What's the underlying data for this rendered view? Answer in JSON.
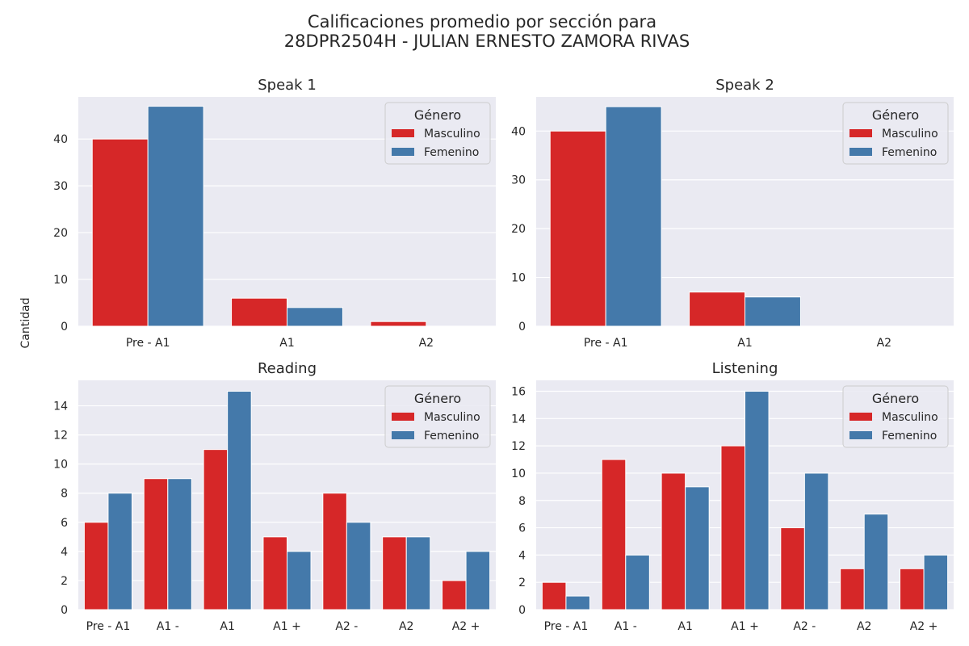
{
  "figure": {
    "title_line1": "Calificaciones promedio por sección para",
    "title_line2": "28DPR2504H - JULIAN ERNESTO ZAMORA RIVAS",
    "ylabel": "Cantidad"
  },
  "legend": {
    "title": "Género",
    "entries": [
      "Masculino",
      "Femenino"
    ]
  },
  "colors": {
    "Masculino": "#d62728",
    "Femenino": "#4479aa",
    "plot_bg": "#eaeaf2",
    "grid": "#ffffff"
  },
  "chart_data": [
    {
      "type": "bar",
      "title": "Speak 1",
      "categories": [
        "Pre - A1",
        "A1",
        "A2"
      ],
      "series": [
        {
          "name": "Masculino",
          "values": [
            40,
            6,
            1
          ]
        },
        {
          "name": "Femenino",
          "values": [
            47,
            4,
            0
          ]
        }
      ],
      "ylim": [
        0,
        49
      ],
      "yticks": [
        0,
        10,
        20,
        30,
        40
      ],
      "grid": true,
      "legend_position": "top-right"
    },
    {
      "type": "bar",
      "title": "Speak 2",
      "categories": [
        "Pre - A1",
        "A1",
        "A2"
      ],
      "series": [
        {
          "name": "Masculino",
          "values": [
            40,
            7,
            0
          ]
        },
        {
          "name": "Femenino",
          "values": [
            45,
            6,
            0
          ]
        }
      ],
      "ylim": [
        0,
        47
      ],
      "yticks": [
        0,
        10,
        20,
        30,
        40
      ],
      "grid": true,
      "legend_position": "top-right"
    },
    {
      "type": "bar",
      "title": "Reading",
      "categories": [
        "Pre - A1",
        "A1 -",
        "A1",
        "A1 +",
        "A2 -",
        "A2",
        "A2 +"
      ],
      "series": [
        {
          "name": "Masculino",
          "values": [
            6,
            9,
            11,
            5,
            8,
            5,
            2
          ]
        },
        {
          "name": "Femenino",
          "values": [
            8,
            9,
            15,
            4,
            6,
            5,
            4
          ]
        }
      ],
      "ylim": [
        0,
        15.75
      ],
      "yticks": [
        0,
        2,
        4,
        6,
        8,
        10,
        12,
        14
      ],
      "grid": true,
      "legend_position": "top-right"
    },
    {
      "type": "bar",
      "title": "Listening",
      "categories": [
        "Pre - A1",
        "A1 -",
        "A1",
        "A1 +",
        "A2 -",
        "A2",
        "A2 +"
      ],
      "series": [
        {
          "name": "Masculino",
          "values": [
            2,
            11,
            10,
            12,
            6,
            3,
            3
          ]
        },
        {
          "name": "Femenino",
          "values": [
            1,
            4,
            9,
            16,
            10,
            7,
            4
          ]
        }
      ],
      "ylim": [
        0,
        16.8
      ],
      "yticks": [
        0,
        2,
        4,
        6,
        8,
        10,
        12,
        14,
        16
      ],
      "grid": true,
      "legend_position": "top-right"
    }
  ]
}
